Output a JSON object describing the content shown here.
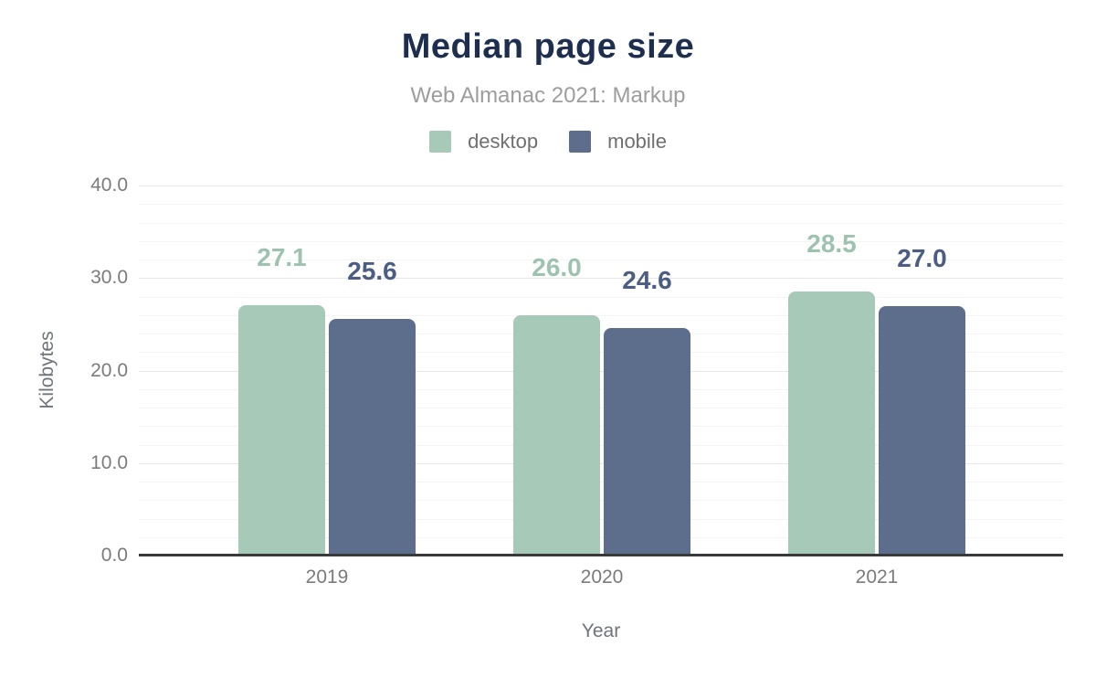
{
  "chart_data": {
    "type": "bar",
    "title": "Median page size",
    "subtitle": "Web Almanac 2021: Markup",
    "xlabel": "Year",
    "ylabel": "Kilobytes",
    "categories": [
      "2019",
      "2020",
      "2021"
    ],
    "series": [
      {
        "name": "desktop",
        "color": "#a7c9b8",
        "label_color": "#9dc3b0",
        "values": [
          27.1,
          26.0,
          28.5
        ]
      },
      {
        "name": "mobile",
        "color": "#5d6e8c",
        "label_color": "#4b5d82",
        "values": [
          25.6,
          24.6,
          27.0
        ]
      }
    ],
    "ylim": [
      0,
      40
    ],
    "yticks": [
      0,
      10,
      20,
      30,
      40
    ],
    "ytick_labels": [
      "0.0",
      "10.0",
      "20.0",
      "30.0",
      "40.0"
    ],
    "minor_grid_step": 2,
    "grid": "horizontal",
    "legend_position": "top",
    "data_labels": true
  }
}
